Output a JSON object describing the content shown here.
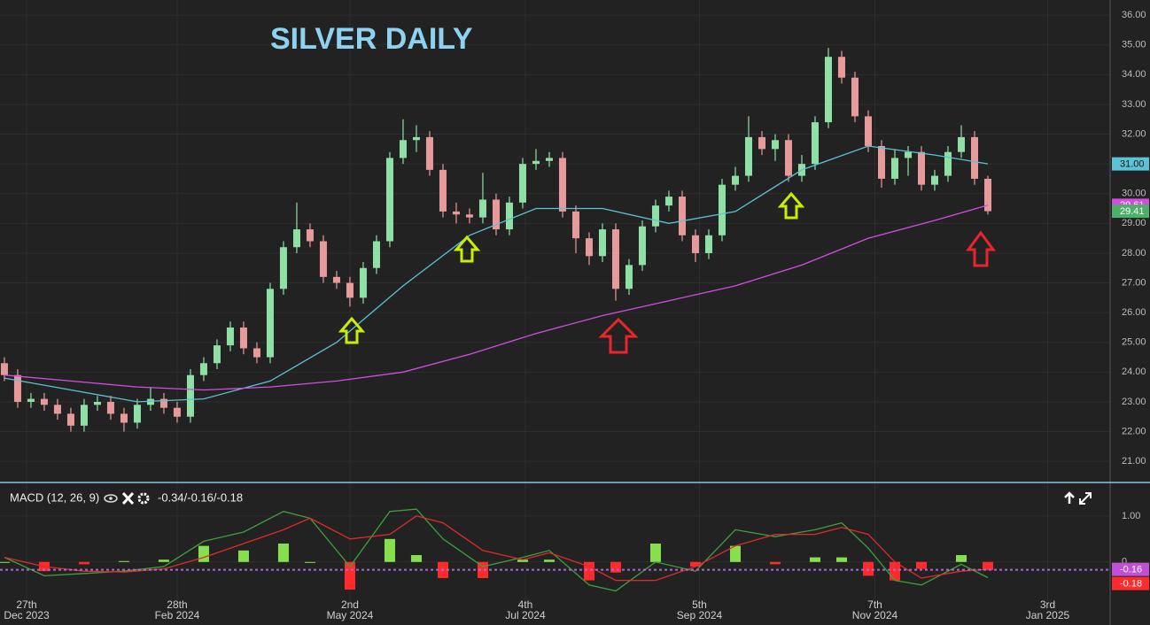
{
  "chart_data": [
    {
      "type": "candlestick",
      "title": "SILVER DAILY",
      "open": [
        24.3,
        23.9,
        23.0,
        23.1,
        22.9,
        22.6,
        22.2,
        22.9,
        23.0,
        22.6,
        22.3,
        22.9,
        23.1,
        22.8,
        22.5,
        23.9,
        24.3,
        24.9,
        25.5,
        24.8,
        24.5,
        26.8,
        28.2,
        28.8,
        28.4,
        27.2,
        27.0,
        26.5,
        27.5,
        28.4,
        31.2,
        31.8,
        31.9,
        30.8,
        29.4,
        29.3,
        29.2,
        29.8,
        28.8,
        29.7,
        31.0,
        31.1,
        31.2,
        29.4,
        28.5,
        27.9,
        28.8,
        26.8,
        27.6,
        28.9,
        29.6,
        29.9,
        28.6,
        28.0,
        28.6,
        30.3,
        30.6,
        31.9,
        31.5,
        31.8,
        30.6,
        31.0,
        32.4,
        34.6,
        33.9,
        32.6,
        31.6,
        30.5,
        31.2,
        31.4,
        30.3,
        30.6,
        31.4,
        31.9,
        30.5
      ],
      "high": [
        24.5,
        24.1,
        23.3,
        23.3,
        23.1,
        22.8,
        23.1,
        23.2,
        23.2,
        22.8,
        23.1,
        23.5,
        23.3,
        23.0,
        24.1,
        24.5,
        25.1,
        25.7,
        25.7,
        25.0,
        27.0,
        28.4,
        29.7,
        29.0,
        28.6,
        27.4,
        27.2,
        27.7,
        28.6,
        31.4,
        32.5,
        32.3,
        32.1,
        31.0,
        29.7,
        29.5,
        30.7,
        30.0,
        29.9,
        31.2,
        31.5,
        31.4,
        31.4,
        29.6,
        28.7,
        29.0,
        29.0,
        27.8,
        29.1,
        29.8,
        30.1,
        30.1,
        28.8,
        28.8,
        30.5,
        30.9,
        32.6,
        32.1,
        32.0,
        32.0,
        31.3,
        32.6,
        34.9,
        34.8,
        34.1,
        32.8,
        31.8,
        31.5,
        31.6,
        31.6,
        30.8,
        31.6,
        32.3,
        32.1,
        30.6
      ],
      "low": [
        23.7,
        22.8,
        22.8,
        22.7,
        22.4,
        22.0,
        22.0,
        22.7,
        22.4,
        22.0,
        22.1,
        22.7,
        22.6,
        22.3,
        22.3,
        23.7,
        24.1,
        24.7,
        24.6,
        24.3,
        24.3,
        26.6,
        28.0,
        28.2,
        27.0,
        26.8,
        26.2,
        26.3,
        27.3,
        28.2,
        31.0,
        31.4,
        30.6,
        29.2,
        29.0,
        29.0,
        29.0,
        28.6,
        28.6,
        29.5,
        30.8,
        30.9,
        29.2,
        28.0,
        27.6,
        27.7,
        26.4,
        26.6,
        27.4,
        28.7,
        29.4,
        28.4,
        27.7,
        27.8,
        28.4,
        30.1,
        30.4,
        31.3,
        31.1,
        30.4,
        30.4,
        30.8,
        32.2,
        33.7,
        32.4,
        31.4,
        30.2,
        30.3,
        30.6,
        30.1,
        30.1,
        30.4,
        31.2,
        30.3,
        29.3
      ],
      "close": [
        23.9,
        23.0,
        23.1,
        22.9,
        22.6,
        22.2,
        22.9,
        23.0,
        22.6,
        22.3,
        22.9,
        23.1,
        22.8,
        22.5,
        23.9,
        24.3,
        24.9,
        25.5,
        24.8,
        24.5,
        26.8,
        28.2,
        28.8,
        28.4,
        27.2,
        27.0,
        26.5,
        27.5,
        28.4,
        31.2,
        31.8,
        31.9,
        30.8,
        29.4,
        29.3,
        29.2,
        29.8,
        28.8,
        29.7,
        31.0,
        31.1,
        31.2,
        29.4,
        28.5,
        27.9,
        28.8,
        26.8,
        27.6,
        28.9,
        29.6,
        29.9,
        28.6,
        28.0,
        28.6,
        30.3,
        30.6,
        31.9,
        31.5,
        31.8,
        30.6,
        31.0,
        32.4,
        34.6,
        33.9,
        32.6,
        31.6,
        30.5,
        31.2,
        31.4,
        30.3,
        30.6,
        31.4,
        31.9,
        30.5,
        29.41
      ],
      "up_color": "#8fe0a4",
      "down_color": "#e79a9a",
      "last_color": "#4caf6a",
      "series": [
        {
          "color": "#5bc3d3",
          "x": [
            0,
            5,
            10,
            15,
            20,
            25,
            30,
            35,
            40,
            45,
            50,
            55,
            60,
            65,
            70,
            74
          ],
          "values": [
            23.8,
            23.4,
            23.0,
            23.1,
            23.7,
            25.0,
            26.9,
            28.6,
            29.5,
            29.5,
            29.0,
            29.4,
            30.8,
            31.6,
            31.3,
            31.0
          ],
          "last_label": "31.00"
        },
        {
          "color": "#d24de2",
          "x": [
            0,
            5,
            10,
            15,
            20,
            25,
            30,
            35,
            40,
            45,
            50,
            55,
            60,
            65,
            70,
            74
          ],
          "values": [
            23.9,
            23.7,
            23.5,
            23.4,
            23.5,
            23.7,
            24.0,
            24.6,
            25.3,
            25.9,
            26.4,
            26.9,
            27.6,
            28.5,
            29.1,
            29.61
          ]
        }
      ],
      "xlim": [
        -0.33,
        83.2
      ],
      "ylim": [
        20.29,
        36.51
      ],
      "yticks": [
        {
          "value": 21,
          "label": "21.00"
        },
        {
          "value": 22,
          "label": "22.00"
        },
        {
          "value": 23,
          "label": "23.00"
        },
        {
          "value": 24,
          "label": "24.00"
        },
        {
          "value": 25,
          "label": "25.00"
        },
        {
          "value": 26,
          "label": "26.00"
        },
        {
          "value": 27,
          "label": "27.00"
        },
        {
          "value": 28,
          "label": "28.00"
        },
        {
          "value": 29,
          "label": "29.00"
        },
        {
          "value": 30,
          "label": "30.00"
        },
        {
          "value": 31,
          "label": "31.00"
        },
        {
          "value": 32,
          "label": "32.00"
        },
        {
          "value": 33,
          "label": "33.00"
        },
        {
          "value": 34,
          "label": "34.00"
        },
        {
          "value": 35,
          "label": "35.00"
        },
        {
          "value": 36,
          "label": "36.00"
        }
      ],
      "grid": true
    },
    {
      "type": "macd",
      "title": "MACD (12, 26, 9)",
      "readout": "-0.34/-0.16/-0.18",
      "x": [
        0,
        3,
        6,
        9,
        12,
        15,
        18,
        21,
        23,
        26,
        29,
        31,
        33,
        36,
        39,
        41,
        44,
        46,
        49,
        52,
        55,
        58,
        61,
        63,
        65,
        67,
        69,
        72,
        74
      ],
      "series": [
        {
          "color": "#3f9f3f",
          "values": [
            0.1,
            -0.3,
            -0.25,
            -0.2,
            -0.1,
            0.45,
            0.65,
            1.1,
            0.95,
            -0.1,
            1.1,
            1.15,
            0.5,
            -0.1,
            0.1,
            0.25,
            -0.5,
            -0.63,
            0,
            -0.2,
            0.7,
            0.55,
            0.7,
            0.85,
            0.3,
            -0.4,
            -0.5,
            -0.05,
            -0.34
          ]
        },
        {
          "color": "#e02a2a",
          "values": [
            0.1,
            -0.1,
            -0.2,
            -0.22,
            -0.15,
            0.1,
            0.4,
            0.7,
            0.95,
            0.5,
            0.6,
            1.0,
            0.85,
            0.25,
            0.05,
            0.2,
            -0.1,
            -0.4,
            -0.4,
            -0.1,
            0.35,
            0.6,
            0.6,
            0.75,
            0.6,
            0,
            -0.35,
            -0.2,
            -0.16
          ],
          "last_color": "#c14fd8"
        }
      ],
      "histogram": {
        "values": [
          0,
          -0.2,
          -0.05,
          0.02,
          0.05,
          0.35,
          0.25,
          0.4,
          0,
          -0.6,
          0.5,
          0.15,
          -0.35,
          -0.35,
          0.05,
          0.05,
          -0.4,
          -0.23,
          0.4,
          -0.1,
          0.35,
          -0.05,
          0.1,
          0.1,
          -0.3,
          -0.4,
          -0.15,
          0.15,
          -0.18
        ],
        "up_color": "#86e04e",
        "down_color": "#ff2b2b"
      },
      "xlim": [
        -0.33,
        83.2
      ],
      "ylim": [
        -0.87,
        1.69
      ],
      "yticks": [
        {
          "value": 1,
          "label": "1.00"
        },
        0
      ],
      "xticks": [
        {
          "value": 1.67,
          "label": "27th",
          "sublabel": "Dec 2023"
        },
        {
          "value": 13,
          "label": "28th",
          "sublabel": "Feb 2024"
        },
        {
          "value": 26,
          "label": "2nd",
          "sublabel": "May 2024"
        },
        {
          "value": 39.2,
          "label": "4th",
          "sublabel": "Jul 2024"
        },
        {
          "value": 52.3,
          "label": "5th",
          "sublabel": "Sep 2024"
        },
        {
          "value": 65.5,
          "label": "7th",
          "sublabel": "Nov 2024"
        },
        {
          "value": 78.5,
          "label": "3rd",
          "sublabel": "Jan 2025"
        }
      ]
    }
  ]
}
